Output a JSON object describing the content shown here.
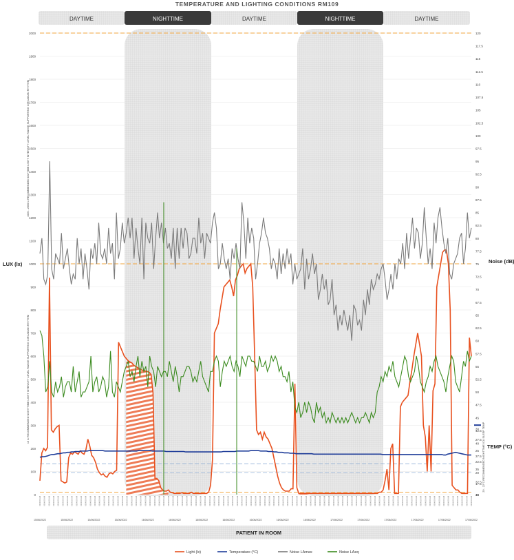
{
  "chart_data": {
    "type": "line",
    "title": "TEMPERATURE AND LIGHTING CONDITIONS RM109",
    "periods": [
      {
        "label": "DAYTIME",
        "dark": false
      },
      {
        "label": "NIGHTTIME",
        "dark": true
      },
      {
        "label": "DAYTIME",
        "dark": false
      },
      {
        "label": "NIGHTTIME",
        "dark": true
      },
      {
        "label": "DAYTIME",
        "dark": false
      }
    ],
    "bottom_band_label": "PATIENT IN ROOM",
    "left_axis": {
      "label": "LUX (lx)",
      "ticks": [
        "2000",
        "1900",
        "1800",
        "1700",
        "1600",
        "1500",
        "1400",
        "1300",
        "1200",
        "1100",
        "1000",
        "900",
        "800",
        "700",
        "600",
        "500",
        "400",
        "300",
        "200",
        "100",
        "0"
      ],
      "upper_note": "1000 - 2000 lx RECOMMENDED DAYTIME LIGHT INTENSITY LEVEL RANGE SUPPORTING CIRCADIAN RHYTHM",
      "lower_note": "10 lx RECOMMENDED NIGHTTIME LIGHT INTENSITY LEVEL RANGE SUPPORTING CIRCADIAN RHYTHM"
    },
    "noise_axis": {
      "label": "Noise (dB)",
      "ticks": [
        "120",
        "117.5",
        "115",
        "112.5",
        "110",
        "107.5",
        "105",
        "102.5",
        "100",
        "97.5",
        "95",
        "92.5",
        "90",
        "87.5",
        "85",
        "82.5",
        "80",
        "77.5",
        "75",
        "72.5",
        "70",
        "67.5",
        "65",
        "62.5",
        "60",
        "57.5",
        "55",
        "52.5",
        "50",
        "47.5",
        "45",
        "42.5",
        "40",
        "37.5",
        "35",
        "32.5",
        "30"
      ]
    },
    "temp_axis": {
      "label": "TEMP (°C)",
      "ticks": [
        "30",
        "27.5",
        "25",
        "22.5",
        "20",
        "17.5",
        "15"
      ],
      "note": "20 - 22°C RECOMMENDED NIGHTTIME ICU SLEEP TEMP"
    },
    "date_labels": [
      "15/06/2022",
      "15/06/2022",
      "15/06/2022",
      "15/06/2022",
      "16/06/2022",
      "16/06/2022",
      "16/06/2022",
      "16/06/2022",
      "16/06/2022",
      "16/06/2022",
      "16/06/2022",
      "17/06/2022",
      "17/06/2022",
      "17/06/2022",
      "17/06/2022",
      "17/06/2022",
      "17/06/2022"
    ],
    "series": [
      {
        "name": "Light   (lx)",
        "color": "#e8501e",
        "axis": "lux",
        "values": [
          60,
          180,
          200,
          190,
          205,
          940,
          280,
          270,
          285,
          295,
          300,
          60,
          55,
          50,
          55,
          160,
          180,
          175,
          185,
          180,
          175,
          190,
          180,
          175,
          195,
          240,
          210,
          170,
          160,
          140,
          110,
          95,
          85,
          90,
          80,
          75,
          90,
          95,
          90,
          100,
          105,
          660,
          640,
          620,
          600,
          590,
          580,
          575,
          570,
          560,
          555,
          550,
          545,
          540,
          538,
          535,
          533,
          530,
          520,
          440,
          70,
          70,
          60,
          30,
          20,
          15,
          15,
          20,
          10,
          8,
          5,
          5,
          5,
          5,
          8,
          5,
          5,
          5,
          5,
          10,
          5,
          5,
          5,
          5,
          5,
          5,
          5,
          5,
          10,
          40,
          150,
          700,
          720,
          740,
          800,
          850,
          900,
          910,
          920,
          930,
          900,
          860,
          930,
          950,
          980,
          990,
          1000,
          960,
          980,
          990,
          1000,
          900,
          600,
          280,
          260,
          270,
          240,
          270,
          250,
          240,
          220,
          200,
          160,
          120,
          80,
          50,
          30,
          20,
          15,
          15,
          15,
          25,
          25,
          480,
          30,
          5,
          5,
          5,
          5,
          5,
          5,
          5,
          5,
          5,
          5,
          5,
          5,
          5,
          5,
          5,
          5,
          5,
          5,
          5,
          5,
          5,
          5,
          5,
          5,
          5,
          5,
          5,
          5,
          5,
          5,
          5,
          5,
          5,
          5,
          5,
          5,
          5,
          5,
          5,
          5,
          5,
          5,
          10,
          10,
          20,
          60,
          110,
          20,
          200,
          220,
          5,
          5,
          5,
          380,
          400,
          410,
          420,
          430,
          490,
          540,
          600,
          650,
          700,
          650,
          600,
          300,
          250,
          100,
          300,
          100,
          450,
          480,
          900,
          950,
          1000,
          1050,
          1060,
          1060,
          1000,
          800,
          40,
          30,
          20,
          20,
          10,
          5,
          5,
          5,
          5,
          680,
          600
        ]
      },
      {
        "name": "Temperature   (°C)",
        "color": "#1f3d99",
        "axis": "temp",
        "values": [
          23.5,
          23.6,
          23.6,
          23.7,
          23.8,
          24.0,
          24.1,
          24.1,
          24.2,
          24.3,
          24.3,
          24.4,
          24.5,
          24.5,
          24.6,
          24.6,
          24.7,
          24.7,
          24.8,
          24.8,
          24.8,
          24.9,
          24.9,
          24.9,
          24.9,
          25.0,
          25.0,
          25.0,
          25.0,
          25.0,
          25.0,
          25.0,
          25.0,
          24.9,
          24.9,
          24.9,
          24.9,
          24.9,
          24.9,
          24.9,
          24.9,
          24.9,
          24.9,
          24.9,
          24.9,
          24.9,
          24.9,
          24.9,
          24.9,
          24.9,
          25.0,
          25.0,
          25.0,
          25.0,
          25.0,
          25.0,
          25.0,
          24.9,
          24.9,
          24.9,
          24.9,
          24.9,
          24.9,
          24.9,
          24.8,
          24.8,
          24.8,
          24.8,
          24.8,
          24.8,
          24.8,
          24.8,
          24.8,
          24.8,
          24.7,
          24.7,
          24.7,
          24.7,
          24.7,
          24.7,
          24.7,
          24.7,
          24.7,
          24.7,
          24.7,
          24.7,
          24.7,
          24.7,
          24.7,
          24.7,
          24.7,
          24.7,
          24.7,
          24.8,
          24.8,
          24.8,
          24.8,
          24.8,
          24.8,
          24.8,
          24.9,
          24.9,
          24.9,
          24.9,
          24.9,
          24.9,
          24.9,
          25.0,
          25.0,
          25.0,
          25.0,
          25.0,
          24.9,
          24.9,
          24.9,
          24.9,
          24.8,
          24.8,
          24.8,
          24.7,
          24.7,
          24.6,
          24.6,
          24.6,
          24.5,
          24.5,
          24.5,
          24.4,
          24.4,
          24.4,
          24.3,
          24.3,
          24.3,
          24.3,
          24.3,
          24.3,
          24.3,
          24.3,
          24.3,
          24.2,
          24.2,
          24.2,
          24.2,
          24.2,
          24.2,
          24.2,
          24.2,
          24.2,
          24.2,
          24.2,
          24.2,
          24.2,
          24.2,
          24.2,
          24.2,
          24.2,
          24.2,
          24.2,
          24.2,
          24.2,
          24.2,
          24.2,
          24.2,
          24.2,
          24.2,
          24.2,
          24.2,
          24.2,
          24.2,
          24.2,
          24.2,
          24.2,
          24.2,
          24.2,
          24.1,
          24.1,
          24.1,
          24.1,
          24.1,
          24.1,
          24.1,
          24.1,
          24.1,
          24.1,
          24.1,
          24.1,
          24.1,
          24.1,
          24.1,
          24.1,
          24.1,
          24.1,
          24.1,
          24.1,
          24.1,
          24.1,
          24.1,
          24.1,
          24.1,
          24.1,
          24.1,
          24.1,
          24.1,
          24.1,
          24.1,
          24.0,
          24.0,
          24.2,
          24.3,
          24.4,
          24.5,
          24.6,
          24.5,
          24.4,
          24.3,
          24.2,
          24.1,
          24.0,
          24.0,
          24.0
        ]
      },
      {
        "name": "Noise LAmax",
        "color": "#7a7a7a",
        "axis": "noise",
        "values": [
          77,
          80,
          72,
          71,
          73,
          95,
          74,
          72,
          77,
          76,
          75,
          81,
          74,
          76,
          78,
          74,
          71,
          73,
          72,
          80,
          75,
          78,
          72,
          77,
          74,
          70,
          78,
          76,
          79,
          75,
          83,
          77,
          76,
          78,
          75,
          82,
          77,
          79,
          72,
          85,
          76,
          78,
          83,
          79,
          81,
          84,
          80,
          84,
          76,
          82,
          78,
          75,
          84,
          72,
          83,
          80,
          79,
          83,
          74,
          80,
          85,
          80,
          83,
          79,
          82,
          78,
          79,
          76,
          82,
          74,
          82,
          76,
          82,
          78,
          82,
          81,
          76,
          77,
          80,
          80,
          77,
          84,
          79,
          81,
          76,
          81,
          80,
          79,
          83,
          85,
          82,
          74,
          75,
          79,
          76,
          74,
          76,
          72,
          78,
          76,
          79,
          76,
          74,
          87,
          83,
          76,
          84,
          79,
          82,
          80,
          72,
          75,
          79,
          81,
          84,
          81,
          80,
          78,
          74,
          76,
          75,
          72,
          78,
          73,
          77,
          74,
          78,
          75,
          77,
          71,
          75,
          72,
          73,
          74,
          78,
          70,
          76,
          72,
          74,
          77,
          73,
          75,
          68,
          70,
          73,
          70,
          72,
          67,
          68,
          72,
          65,
          67,
          62,
          65,
          63,
          66,
          64,
          62,
          65,
          60,
          67,
          66,
          63,
          64,
          62,
          68,
          65,
          70,
          67,
          72,
          70,
          71,
          73,
          72,
          74,
          75,
          72,
          68,
          70,
          73,
          70,
          75,
          72,
          76,
          75,
          79,
          74,
          81,
          76,
          80,
          84,
          78,
          82,
          81,
          76,
          79,
          86,
          80,
          75,
          78,
          74,
          83,
          79,
          84,
          86,
          82,
          79,
          77,
          80,
          73,
          72,
          75,
          76,
          77,
          80,
          81,
          75,
          78,
          85,
          80,
          82
        ]
      },
      {
        "name": "Noise LAeq",
        "color": "#3a8a1e",
        "axis": "noise",
        "values": [
          62,
          61,
          57,
          50,
          51,
          56,
          50,
          49,
          52,
          50,
          51,
          53,
          49,
          51,
          52,
          52,
          50,
          55,
          50,
          52,
          54,
          49,
          50,
          50,
          51,
          52,
          57,
          50,
          52,
          53,
          50,
          51,
          53,
          52,
          49,
          51,
          58,
          50,
          49,
          52,
          51,
          50,
          52,
          54,
          55,
          56,
          53,
          54,
          52,
          55,
          57,
          53,
          56,
          54,
          55,
          51,
          57,
          55,
          54,
          51,
          55,
          54,
          53,
          54,
          54,
          53,
          56,
          54,
          52,
          55,
          53,
          50,
          53,
          53,
          54,
          55,
          55,
          54,
          52,
          53,
          52,
          54,
          56,
          53,
          52,
          51,
          50,
          54,
          54,
          56,
          57,
          56,
          51,
          54,
          56,
          55,
          56,
          57,
          55,
          54,
          56,
          55,
          53,
          57,
          56,
          55,
          57,
          57,
          56,
          56,
          55,
          54,
          57,
          55,
          55,
          56,
          54,
          55,
          57,
          56,
          57,
          56,
          54,
          55,
          53,
          53,
          52,
          54,
          50,
          52,
          47,
          46,
          48,
          45,
          46,
          48,
          46,
          48,
          47,
          45,
          44,
          48,
          46,
          47,
          45,
          46,
          44,
          45,
          44,
          46,
          45,
          44,
          45,
          44,
          45,
          44,
          45,
          44,
          45,
          46,
          45,
          44,
          45,
          44,
          45,
          45,
          46,
          45,
          44,
          46,
          45,
          46,
          50,
          51,
          53,
          52,
          54,
          53,
          55,
          54,
          56,
          53,
          52,
          51,
          53,
          55,
          57,
          56,
          53,
          52,
          53,
          54,
          57,
          55,
          52,
          51,
          50,
          52,
          53,
          55,
          54,
          56,
          57,
          55,
          54,
          53,
          52,
          50,
          53,
          55,
          57,
          56,
          52,
          51,
          50,
          53,
          56,
          55,
          58,
          56,
          57
        ]
      }
    ]
  }
}
